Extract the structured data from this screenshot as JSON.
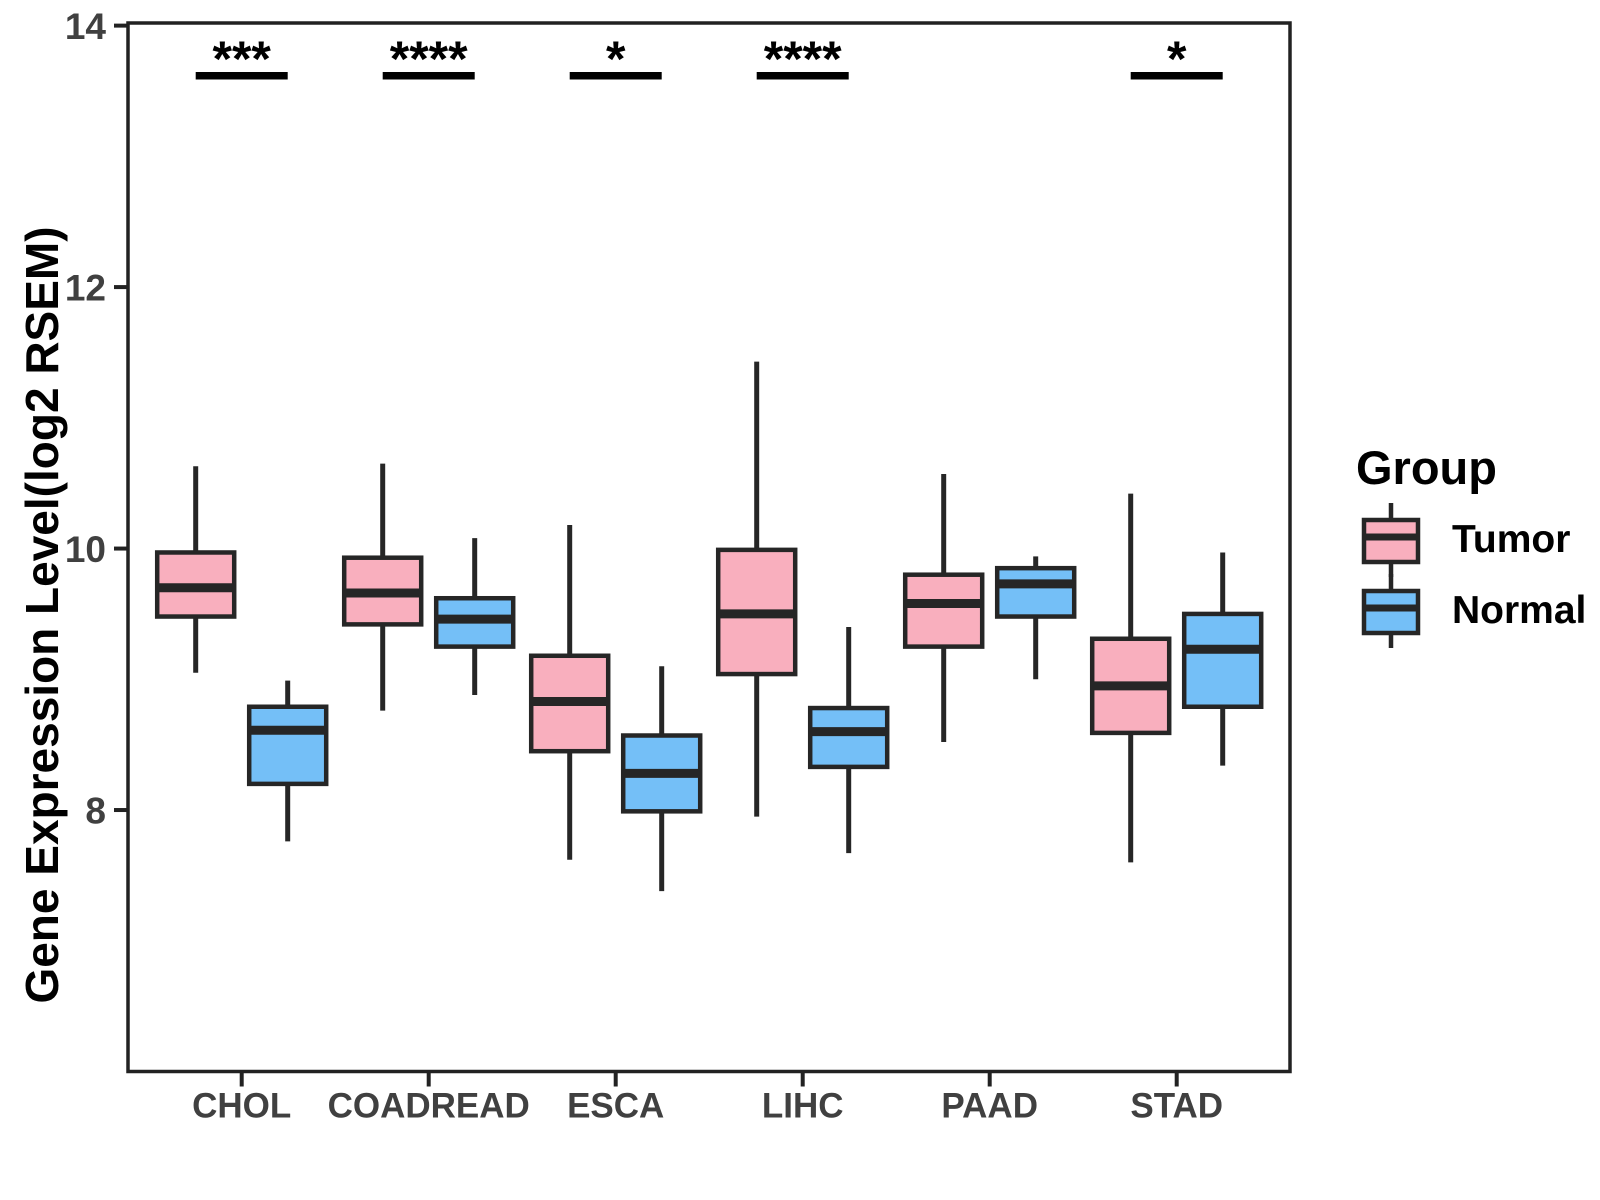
{
  "chart_data": {
    "type": "boxplot",
    "title": "",
    "xlabel": "",
    "ylabel": "Gene Expression Level(log2 RSEM)",
    "ylim": [
      6,
      14
    ],
    "yticks": [
      8,
      10,
      12,
      14
    ],
    "grid": false,
    "categories": [
      "CHOL",
      "COADREAD",
      "ESCA",
      "LIHC",
      "PAAD",
      "STAD"
    ],
    "series": [
      {
        "name": "Tumor",
        "color": "#F9AFBE",
        "boxes": [
          {
            "category": "CHOL",
            "whisker_low": 9.05,
            "q1": 9.48,
            "median": 9.7,
            "q3": 9.97,
            "whisker_high": 10.63
          },
          {
            "category": "COADREAD",
            "whisker_low": 8.76,
            "q1": 9.42,
            "median": 9.66,
            "q3": 9.93,
            "whisker_high": 10.65
          },
          {
            "category": "ESCA",
            "whisker_low": 7.62,
            "q1": 8.45,
            "median": 8.83,
            "q3": 9.18,
            "whisker_high": 10.18
          },
          {
            "category": "LIHC",
            "whisker_low": 7.95,
            "q1": 9.04,
            "median": 9.5,
            "q3": 9.99,
            "whisker_high": 11.43
          },
          {
            "category": "PAAD",
            "whisker_low": 8.52,
            "q1": 9.25,
            "median": 9.58,
            "q3": 9.8,
            "whisker_high": 10.57
          },
          {
            "category": "STAD",
            "whisker_low": 7.6,
            "q1": 8.59,
            "median": 8.95,
            "q3": 9.31,
            "whisker_high": 10.42
          }
        ]
      },
      {
        "name": "Normal",
        "color": "#74BFF7",
        "boxes": [
          {
            "category": "CHOL",
            "whisker_low": 7.76,
            "q1": 8.2,
            "median": 8.61,
            "q3": 8.79,
            "whisker_high": 8.99
          },
          {
            "category": "COADREAD",
            "whisker_low": 8.88,
            "q1": 9.25,
            "median": 9.46,
            "q3": 9.62,
            "whisker_high": 10.08
          },
          {
            "category": "ESCA",
            "whisker_low": 7.38,
            "q1": 7.99,
            "median": 8.28,
            "q3": 8.57,
            "whisker_high": 9.1
          },
          {
            "category": "LIHC",
            "whisker_low": 7.67,
            "q1": 8.33,
            "median": 8.6,
            "q3": 8.78,
            "whisker_high": 9.4
          },
          {
            "category": "PAAD",
            "whisker_low": 9.0,
            "q1": 9.48,
            "median": 9.73,
            "q3": 9.85,
            "whisker_high": 9.94
          },
          {
            "category": "STAD",
            "whisker_low": 8.34,
            "q1": 8.79,
            "median": 9.23,
            "q3": 9.5,
            "whisker_high": 9.97
          }
        ]
      }
    ],
    "significance": [
      {
        "category": "CHOL",
        "label": "***"
      },
      {
        "category": "COADREAD",
        "label": "****"
      },
      {
        "category": "ESCA",
        "label": "*"
      },
      {
        "category": "LIHC",
        "label": "****"
      },
      {
        "category": "STAD",
        "label": "*"
      }
    ],
    "legend": {
      "title": "Group",
      "position": "right"
    },
    "colors": {
      "box_border": "#262626",
      "axis_text": "#404040",
      "panel_border": "#222222",
      "significance": "#000000"
    }
  }
}
